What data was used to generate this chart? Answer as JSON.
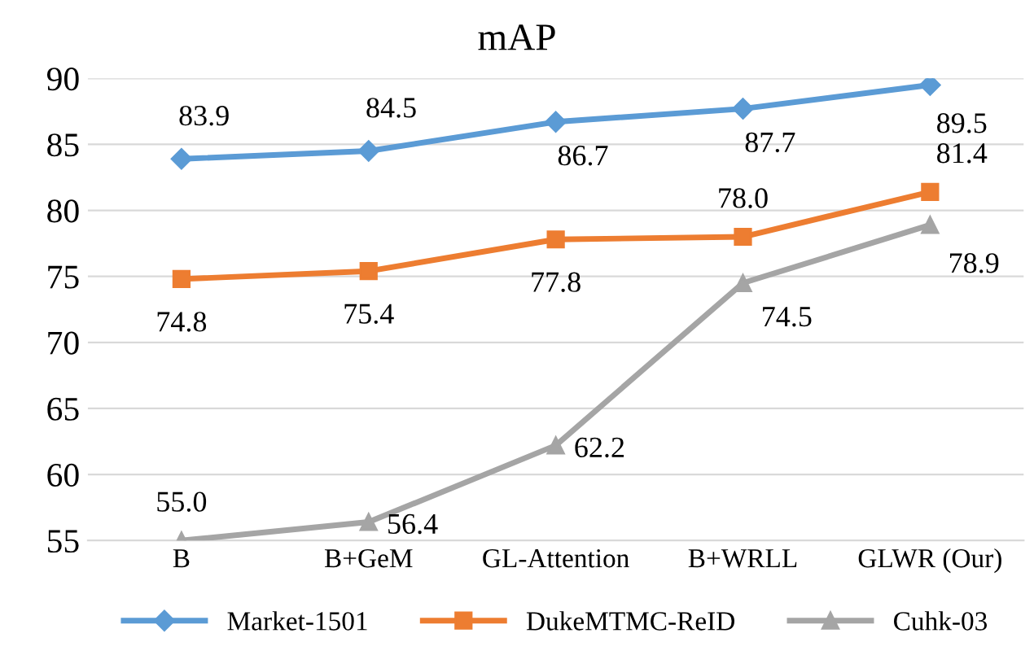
{
  "chart_data": {
    "type": "line",
    "title": "mAP",
    "categories": [
      "B",
      "B+GeM",
      "GL-Attention",
      "B+WRLL",
      "GLWR (Our)"
    ],
    "series": [
      {
        "name": "Market-1501",
        "color": "#5b9bd5",
        "marker": "diamond",
        "values": [
          83.9,
          84.5,
          86.7,
          87.7,
          89.5
        ],
        "value_labels": [
          "83.9",
          "84.5",
          "86.7",
          "87.7",
          "89.5"
        ]
      },
      {
        "name": "DukeMTMC-ReID",
        "color": "#ed7d31",
        "marker": "square",
        "values": [
          74.8,
          75.4,
          77.8,
          78.0,
          81.4
        ],
        "value_labels": [
          "74.8",
          "75.4",
          "77.8",
          "78.0",
          "81.4"
        ]
      },
      {
        "name": "Cuhk-03",
        "color": "#a5a5a5",
        "marker": "triangle",
        "values": [
          55.0,
          56.4,
          62.2,
          74.5,
          78.9
        ],
        "value_labels": [
          "55.0",
          "56.4",
          "62.2",
          "74.5",
          "78.9"
        ]
      }
    ],
    "ylim": [
      55,
      90
    ],
    "yticks": [
      55,
      60,
      65,
      70,
      75,
      80,
      85,
      90
    ],
    "grid": "y",
    "legend": "bottom"
  }
}
